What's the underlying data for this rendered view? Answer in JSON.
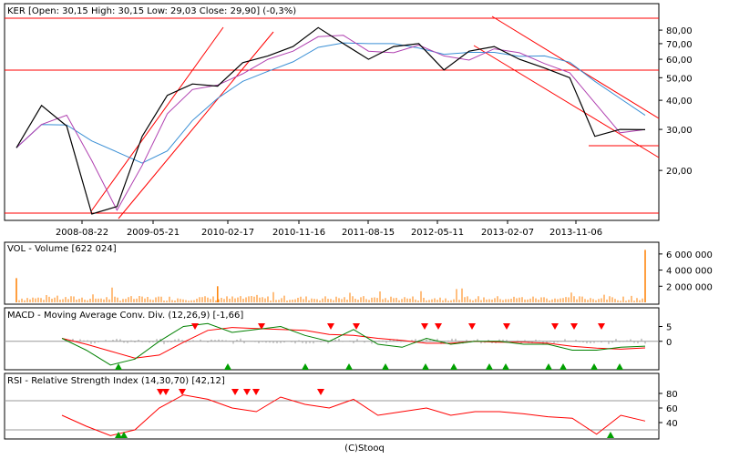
{
  "source": "(C)Stooq",
  "colors": {
    "candles": "#000000",
    "ma_short": "#b040b0",
    "ma_long": "#3a8fd5",
    "trend": "#ff0000",
    "volume": "#ff7f00",
    "signal": "#ff0000",
    "macd": "#008000",
    "rsi": "#ff0000",
    "hist": "#999999"
  },
  "price_panel": {
    "legend": "KER [Open: 30,15  High: 30,15  Low: 29,03  Close: 29,90] (-0,3%)",
    "y_ticks": [
      "80,00",
      "70,00",
      "60,00",
      "50,00",
      "40,00",
      "30,00",
      "20,00"
    ],
    "x_labels": [
      "2008-08-22",
      "2009-05-21",
      "2010-02-17",
      "2010-11-16",
      "2011-08-15",
      "2012-05-11",
      "2013-02-07",
      "2013-11-06"
    ]
  },
  "volume_panel": {
    "legend": "VOL - Volume [622 024]",
    "y_ticks": [
      "6 000 000",
      "4 000 000",
      "2 000 000"
    ]
  },
  "macd_panel": {
    "legend": "MACD - Moving Average Conv. Div. (12,26,9) [-1,66]",
    "y_ticks": [
      "5",
      "0"
    ]
  },
  "rsi_panel": {
    "legend": "RSI - Relative Strength Index (14,30,70) [42,12]",
    "y_ticks": [
      "80",
      "60",
      "40"
    ]
  },
  "chart_data": [
    {
      "type": "line",
      "title": "KER",
      "x": [
        "2008-03",
        "2008-06",
        "2008-08-22",
        "2008-11",
        "2009-02",
        "2009-05-21",
        "2009-08",
        "2009-11",
        "2010-02-17",
        "2010-05",
        "2010-08",
        "2010-11-16",
        "2011-02",
        "2011-05",
        "2011-08-15",
        "2011-11",
        "2012-02",
        "2012-05-11",
        "2012-08",
        "2012-11",
        "2013-02-07",
        "2013-05",
        "2013-08",
        "2013-11-06",
        "2014-02",
        "2014-05"
      ],
      "series": [
        {
          "values": [
            25,
            38,
            31,
            13,
            14,
            28,
            42,
            47,
            46,
            58,
            62,
            68,
            82,
            70,
            60,
            68,
            70,
            54,
            65,
            68,
            60,
            55,
            50,
            28,
            30,
            29.9
          ]
        }
      ],
      "ylim": [
        13,
        90
      ],
      "log_scale": true,
      "grid": true
    },
    {
      "type": "bar",
      "title": "VOL - Volume [622 024]",
      "values_note_excluded": true,
      "ylim": [
        0,
        7000000
      ],
      "spikes": [
        {
          "x": "2008-03",
          "value": 3000000
        },
        {
          "x": "2010-02-17",
          "value": 2000000
        },
        {
          "x": "2014-05",
          "value": 6500000
        }
      ]
    },
    {
      "type": "line",
      "title": "MACD - Moving Average Conv. Div. (12,26,9) [-1,66]",
      "x": [
        "2008-06",
        "2008-08-22",
        "2008-11",
        "2009-02",
        "2009-05-21",
        "2009-08",
        "2009-11",
        "2010-02-17",
        "2010-05",
        "2010-08",
        "2010-11-16",
        "2011-02",
        "2011-05",
        "2011-08-15",
        "2011-11",
        "2012-02",
        "2012-05-11",
        "2012-08",
        "2012-11",
        "2013-02-07",
        "2013-05",
        "2013-08",
        "2013-11-06",
        "2014-02",
        "2014-05"
      ],
      "series": [
        {
          "values": [
            1,
            -3,
            -8,
            -6,
            0,
            5,
            6,
            3,
            4,
            5,
            2,
            0,
            4,
            -1,
            -2,
            1,
            -1,
            0,
            0,
            -1,
            -1,
            -3,
            -3,
            -2,
            -1.66
          ]
        }
      ],
      "ylim": [
        -9,
        7
      ]
    },
    {
      "type": "line",
      "title": "RSI - Relative Strength Index (14,30,70) [42,12]",
      "x": [
        "2008-06",
        "2008-08-22",
        "2008-11",
        "2009-02",
        "2009-05-21",
        "2009-08",
        "2009-11",
        "2010-02-17",
        "2010-05",
        "2010-08",
        "2010-11-16",
        "2011-02",
        "2011-05",
        "2011-08-15",
        "2011-11",
        "2012-02",
        "2012-05-11",
        "2012-08",
        "2012-11",
        "2013-02-07",
        "2013-05",
        "2013-08",
        "2013-11-06",
        "2014-02",
        "2014-05"
      ],
      "series": [
        {
          "values": [
            50,
            35,
            22,
            30,
            60,
            78,
            72,
            60,
            55,
            75,
            65,
            60,
            72,
            50,
            55,
            60,
            50,
            55,
            55,
            52,
            48,
            46,
            24,
            50,
            42.12
          ]
        }
      ],
      "ylim": [
        20,
        90
      ]
    }
  ]
}
